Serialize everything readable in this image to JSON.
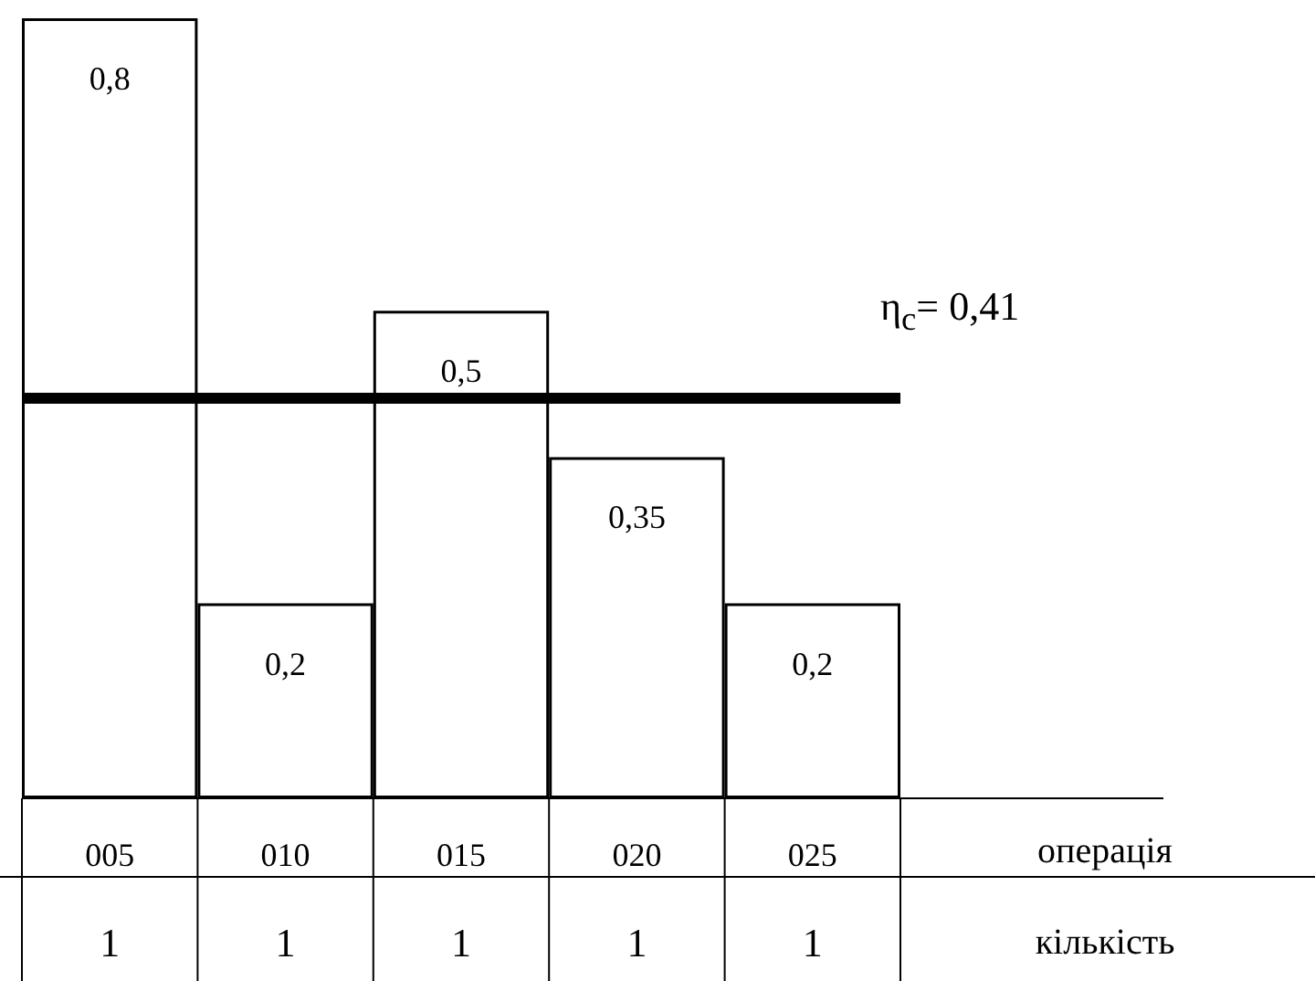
{
  "chart_data": {
    "type": "bar",
    "categories": [
      "005",
      "010",
      "015",
      "020",
      "025"
    ],
    "values": [
      0.8,
      0.2,
      0.5,
      0.35,
      0.2
    ],
    "value_labels": [
      "0,8",
      "0,2",
      "0,5",
      "0,35",
      "0,2"
    ],
    "color": "#ffffff",
    "xlabel": "операція",
    "ref_lines": [
      {
        "axis": "y",
        "value": 0.41,
        "label": "η$_{c}$= 0,41",
        "color": "#000000"
      }
    ],
    "annotations": [
      "кількість",
      "1",
      "1",
      "1",
      "1",
      "1"
    ]
  }
}
